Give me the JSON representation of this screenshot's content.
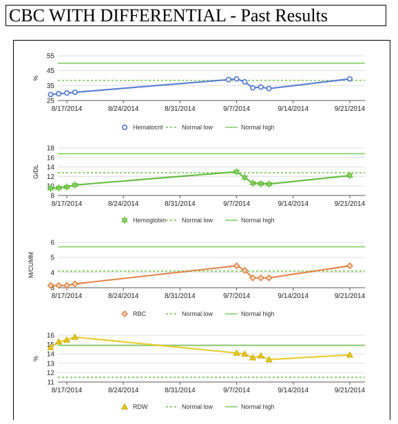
{
  "page": {
    "title": "CBC WITH DIFFERENTIAL - Past Results"
  },
  "chart_data": [
    {
      "type": "line",
      "ylabel": "%",
      "ylim": [
        25,
        55
      ],
      "yticks": [
        25,
        35,
        45,
        55
      ],
      "x": [
        "2014-08-15",
        "2014-08-16",
        "2014-08-17",
        "2014-08-18",
        "2014-09-06",
        "2014-09-07",
        "2014-09-08",
        "2014-09-09",
        "2014-09-10",
        "2014-09-11",
        "2014-09-21"
      ],
      "series": [
        {
          "name": "Hematocrit",
          "values": [
            29,
            29.5,
            30,
            30.5,
            39,
            39.5,
            37.5,
            33.5,
            34,
            33,
            39.5
          ],
          "color": "#4a74d0",
          "marker": "circle"
        }
      ],
      "normal_low": 38.5,
      "normal_high": 50,
      "legend": {
        "series": "Hematocrit",
        "low": "Normal low",
        "high": "Normal high"
      }
    },
    {
      "type": "line",
      "ylabel": "G/DL",
      "ylim": [
        8,
        18
      ],
      "yticks": [
        8,
        10,
        12,
        14,
        16,
        18
      ],
      "x": [
        "2014-08-15",
        "2014-08-16",
        "2014-08-17",
        "2014-08-18",
        "2014-09-07",
        "2014-09-08",
        "2014-09-09",
        "2014-09-10",
        "2014-09-11",
        "2014-09-21"
      ],
      "series": [
        {
          "name": "Hemoglobin",
          "values": [
            9.5,
            9.6,
            9.8,
            10.2,
            13.0,
            11.8,
            10.6,
            10.5,
            10.4,
            12.2
          ],
          "color": "#55b82a",
          "marker": "star"
        }
      ],
      "normal_low": 12.8,
      "normal_high": 16.8,
      "legend": {
        "series": "Hemoglobin",
        "low": "Normal low",
        "high": "Normal high"
      }
    },
    {
      "type": "line",
      "ylabel": "M/CUMM",
      "ylim": [
        3,
        6
      ],
      "yticks": [
        3,
        4,
        5,
        6
      ],
      "x": [
        "2014-08-15",
        "2014-08-16",
        "2014-08-17",
        "2014-08-18",
        "2014-09-07",
        "2014-09-08",
        "2014-09-09",
        "2014-09-10",
        "2014-09-11",
        "2014-09-21"
      ],
      "series": [
        {
          "name": "RBC",
          "values": [
            3.15,
            3.15,
            3.15,
            3.25,
            4.45,
            4.15,
            3.65,
            3.65,
            3.65,
            4.45
          ],
          "color": "#e07a3a",
          "marker": "diamond"
        }
      ],
      "normal_low": 4.1,
      "normal_high": 5.7,
      "legend": {
        "series": "RBC",
        "low": "Normal low",
        "high": "Normal high"
      }
    },
    {
      "type": "line",
      "ylabel": "%",
      "ylim": [
        11,
        16
      ],
      "yticks": [
        11,
        12,
        13,
        14,
        15,
        16
      ],
      "x": [
        "2014-08-15",
        "2014-08-16",
        "2014-08-17",
        "2014-08-18",
        "2014-09-07",
        "2014-09-08",
        "2014-09-09",
        "2014-09-10",
        "2014-09-11",
        "2014-09-21"
      ],
      "series": [
        {
          "name": "RDW",
          "values": [
            14.7,
            15.3,
            15.5,
            15.8,
            14.1,
            14.0,
            13.6,
            13.8,
            13.4,
            13.9
          ],
          "color": "#e8c81e",
          "marker": "triangle"
        }
      ],
      "normal_low": 11.5,
      "normal_high": 14.9,
      "legend": {
        "series": "RDW",
        "low": "Normal low",
        "high": "Normal high"
      }
    }
  ],
  "x_axis": {
    "range": [
      "2014-08-13",
      "2014-09-22"
    ],
    "ticks": [
      "2014-08-17",
      "2014-08-24",
      "2014-08-31",
      "2014-09-07",
      "2014-09-14",
      "2014-09-21"
    ],
    "tick_labels": [
      "8/17/2014",
      "8/24/2014",
      "8/31/2014",
      "9/7/2014",
      "9/14/2014",
      "9/21/2014"
    ]
  },
  "colors": {
    "normal_band": "#7fce5c",
    "grid": "#dddddd"
  }
}
